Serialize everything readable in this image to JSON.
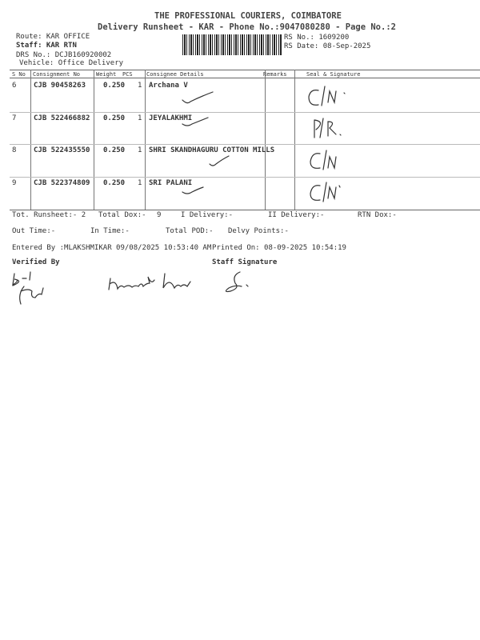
{
  "header": {
    "company": "THE PROFESSIONAL COURIERS, COIMBATORE",
    "subtitle": "Delivery Runsheet - KAR - Phone No.:9047080280 - Page No.:2",
    "route": "Route: KAR OFFICE",
    "staff": "Staff: KAR RTN",
    "drs_no": "DRS No.: DCJB160920002",
    "vehicle": "Vehicle: Office Delivery",
    "rs_no": "RS No.: 1609200",
    "rs_date": "RS Date: 08-Sep-2025"
  },
  "table": {
    "columns": [
      "S No",
      "Consignment No",
      "Weight",
      "PCS",
      "Consignee Details",
      "Remarks",
      "Seal & Signature"
    ],
    "rows": [
      {
        "sno": "6",
        "consignment": "CJB 90458263",
        "weight": "0.250",
        "pcs": "1",
        "consignee": "Archana V",
        "seal": "C/N"
      },
      {
        "sno": "7",
        "consignment": "CJB 522466882",
        "weight": "0.250",
        "pcs": "1",
        "consignee": "JEYALAKHMI",
        "seal": "P/R"
      },
      {
        "sno": "8",
        "consignment": "CJB 522435550",
        "weight": "0.250",
        "pcs": "1",
        "consignee": "SHRI SKANDHAGURU COTTON MILLS",
        "seal": "C/N"
      },
      {
        "sno": "9",
        "consignment": "CJB 522374809",
        "weight": "0.250",
        "pcs": "1",
        "consignee": "SRI PALANI",
        "seal": "C/N"
      }
    ]
  },
  "summary": {
    "tot_runsheet": "Tot. Runsheet:- 2",
    "total_dox": "Total Dox:-",
    "total_dox_value": "9",
    "i_delivery": "I Delivery:-",
    "ii_delivery": "II Delivery:-",
    "rtn_dox": "RTN Dox:-",
    "out_time": "Out Time:-",
    "in_time": "In Time:-",
    "total_pod": "Total POD:-",
    "delvy_points": "Delvy Points:-",
    "entered_by": "Entered By :MLAKSHMIKAR 09/08/2025 10:53:40 AM",
    "printed_on": "Printed On: 08-09-2025 10:54:19",
    "verified_by": "Verified By",
    "staff_signature": "Staff Signature"
  }
}
